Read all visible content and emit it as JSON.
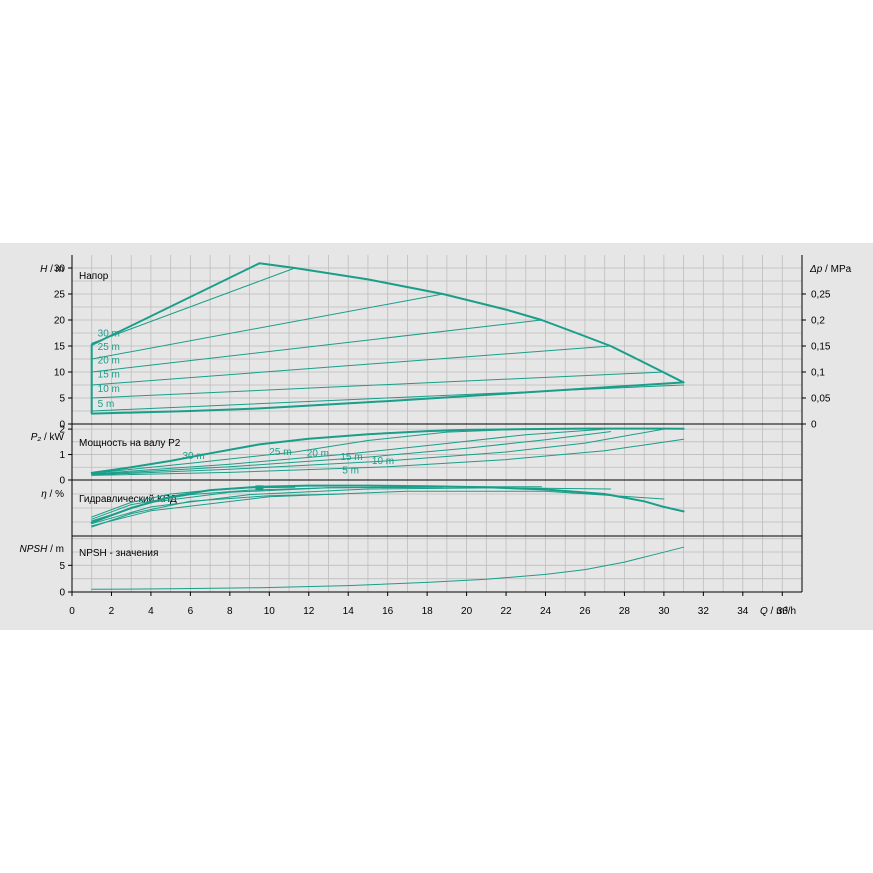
{
  "colors": {
    "curve": "#1a9e8a",
    "grid": "#bdbdbd",
    "panel": "#e6e6e6",
    "plot": "#e6e6e6"
  },
  "chart_data": [
    {
      "id": "head",
      "type": "line",
      "title": "Напор",
      "ylabel_var": "H",
      "ylabel_unit": "m",
      "ylim": [
        0,
        32.5
      ],
      "yticks": [
        "0",
        "5",
        "10",
        "15",
        "20",
        "25",
        "30"
      ],
      "ytick_values": [
        0,
        5,
        10,
        15,
        20,
        25,
        30
      ],
      "y2label_var": "Δp",
      "y2label_unit": "MPa",
      "y2ticks": [
        "0",
        "0,05",
        "0,1",
        "0,15",
        "0,2",
        "0,25"
      ],
      "y2tick_values": [
        0,
        5,
        10,
        15,
        20,
        25
      ],
      "series": [
        {
          "label": "30 m",
          "bold": false,
          "x": [
            1,
            11.3
          ],
          "y": [
            15.5,
            30.0
          ]
        },
        {
          "label": "25 m",
          "bold": false,
          "x": [
            1,
            18.8
          ],
          "y": [
            12.5,
            25.0
          ]
        },
        {
          "label": "20 m",
          "bold": false,
          "x": [
            1,
            23.8
          ],
          "y": [
            10.0,
            20.0
          ]
        },
        {
          "label": "15 m",
          "bold": false,
          "x": [
            1,
            27.3
          ],
          "y": [
            7.5,
            15.0
          ]
        },
        {
          "label": "10 m",
          "bold": false,
          "x": [
            1,
            30.0
          ],
          "y": [
            5.0,
            10.0
          ]
        },
        {
          "label": "5 m",
          "bold": false,
          "x": [
            1,
            31.0
          ],
          "y": [
            2.5,
            7.5
          ]
        },
        {
          "label": "",
          "bold": true,
          "x": [
            1,
            9.5,
            11.3,
            15,
            18.8,
            22,
            23.8,
            25.5,
            27.3,
            29,
            31,
            26,
            21,
            16,
            11,
            9.5,
            6,
            3,
            1,
            1,
            1
          ],
          "y": [
            15.2,
            30.9,
            30.0,
            27.8,
            25.0,
            22.0,
            20.0,
            17.6,
            15.0,
            11.8,
            8.0,
            6.8,
            5.6,
            4.4,
            3.3,
            3.0,
            2.5,
            2.2,
            2.0,
            2.0,
            15.2
          ]
        }
      ],
      "labels": [
        {
          "text": "30 m",
          "x": 1.3,
          "y": 16.8
        },
        {
          "text": "25 m",
          "x": 1.3,
          "y": 14.2
        },
        {
          "text": "20 m",
          "x": 1.3,
          "y": 11.6
        },
        {
          "text": "15 m",
          "x": 1.3,
          "y": 8.9
        },
        {
          "text": "10 m",
          "x": 1.3,
          "y": 6.2
        },
        {
          "text": "5 m",
          "x": 1.3,
          "y": 3.3
        }
      ]
    },
    {
      "id": "power",
      "type": "line",
      "title": "Мощность на валу P2",
      "ylabel_var": "P₂",
      "ylabel_unit": "kW",
      "ylim": [
        0,
        2.2
      ],
      "yticks": [
        "0",
        "1",
        "2"
      ],
      "ytick_values": [
        0,
        1,
        2
      ],
      "series": [
        {
          "label": "30 m",
          "bold": true,
          "x": [
            1,
            3,
            5,
            7,
            9.5,
            12,
            15,
            18,
            20,
            23,
            26,
            28,
            30,
            31
          ],
          "y": [
            0.28,
            0.5,
            0.75,
            1.05,
            1.4,
            1.62,
            1.8,
            1.92,
            1.97,
            2.0,
            2.02,
            2.02,
            2.02,
            2.01
          ]
        },
        {
          "label": "25 m",
          "bold": false,
          "x": [
            1,
            6,
            11.3,
            15,
            19,
            23
          ],
          "y": [
            0.26,
            0.66,
            1.1,
            1.55,
            1.88,
            2.0
          ]
        },
        {
          "label": "20 m",
          "bold": false,
          "x": [
            1,
            8,
            14,
            18.8,
            23,
            27.3
          ],
          "y": [
            0.24,
            0.62,
            1.02,
            1.42,
            1.78,
            2.01
          ]
        },
        {
          "label": "15 m",
          "bold": false,
          "x": [
            1,
            8,
            15,
            20,
            24,
            27.3
          ],
          "y": [
            0.22,
            0.52,
            0.9,
            1.25,
            1.58,
            1.9
          ]
        },
        {
          "label": "10 m",
          "bold": false,
          "x": [
            1,
            8,
            16,
            22,
            26,
            30
          ],
          "y": [
            0.2,
            0.42,
            0.75,
            1.1,
            1.45,
            2.0
          ]
        },
        {
          "label": "5 m",
          "bold": false,
          "x": [
            1,
            8,
            16,
            22,
            27,
            31
          ],
          "y": [
            0.18,
            0.3,
            0.52,
            0.8,
            1.15,
            1.6
          ]
        }
      ],
      "labels": [
        {
          "text": "30 m",
          "x": 5.6,
          "y": 0.82
        },
        {
          "text": "25 m",
          "x": 10.0,
          "y": 0.98
        },
        {
          "text": "20 m",
          "x": 11.9,
          "y": 0.92
        },
        {
          "text": "15 m",
          "x": 13.6,
          "y": 0.78
        },
        {
          "text": "10 m",
          "x": 15.2,
          "y": 0.62
        },
        {
          "text": "5 m",
          "x": 13.7,
          "y": 0.25
        }
      ]
    },
    {
      "id": "efficiency",
      "type": "line",
      "title": "Гидравлический КПД",
      "ylabel_var": "η",
      "ylabel_unit": "%",
      "ylim": [
        0,
        1.0
      ],
      "yticks": [],
      "ytick_values": [],
      "series": [
        {
          "label": "",
          "bold": true,
          "x": [
            1,
            3,
            5,
            7,
            9.5,
            12,
            15,
            18,
            21,
            24,
            27,
            29,
            30,
            31
          ],
          "y": [
            0.24,
            0.5,
            0.7,
            0.82,
            0.88,
            0.9,
            0.9,
            0.89,
            0.87,
            0.83,
            0.75,
            0.62,
            0.52,
            0.44
          ]
        },
        {
          "label": "",
          "bold": false,
          "x": [
            1,
            3,
            5,
            7,
            9,
            11.3
          ],
          "y": [
            0.34,
            0.6,
            0.75,
            0.82,
            0.86,
            0.87
          ]
        },
        {
          "label": "",
          "bold": false,
          "x": [
            1,
            3,
            6,
            9,
            13,
            18.8
          ],
          "y": [
            0.3,
            0.56,
            0.74,
            0.82,
            0.86,
            0.87
          ]
        },
        {
          "label": "",
          "bold": false,
          "x": [
            1,
            4,
            8,
            13,
            19,
            23.8
          ],
          "y": [
            0.27,
            0.6,
            0.78,
            0.86,
            0.88,
            0.88
          ]
        },
        {
          "label": "",
          "bold": false,
          "x": [
            1,
            4,
            9,
            15,
            22,
            27.3
          ],
          "y": [
            0.22,
            0.52,
            0.74,
            0.84,
            0.86,
            0.84
          ]
        },
        {
          "label": "",
          "bold": false,
          "x": [
            1,
            4,
            10,
            17,
            24,
            30
          ],
          "y": [
            0.18,
            0.45,
            0.7,
            0.8,
            0.8,
            0.66
          ]
        },
        {
          "label": "",
          "bold": false,
          "x": [
            1,
            3,
            6,
            10,
            13.8
          ],
          "y": [
            0.16,
            0.4,
            0.62,
            0.72,
            0.75
          ]
        }
      ],
      "marker": {
        "x": 9.5,
        "y": 0.86
      }
    },
    {
      "id": "npsh",
      "type": "line",
      "title": "NPSH - значения",
      "ylabel_var": "NPSH",
      "ylabel_unit": "m",
      "ylim": [
        0,
        10.5
      ],
      "yticks": [
        "0",
        "5"
      ],
      "ytick_values": [
        0,
        5
      ],
      "series": [
        {
          "label": "",
          "bold": false,
          "x": [
            1,
            5,
            9.5,
            14,
            18,
            21,
            24,
            26,
            28,
            29.5,
            31
          ],
          "y": [
            0.5,
            0.6,
            0.8,
            1.2,
            1.8,
            2.4,
            3.3,
            4.2,
            5.6,
            7.0,
            8.4
          ]
        }
      ]
    }
  ],
  "x_axis": {
    "label_var": "Q",
    "label_unit": "m³/h",
    "xlim": [
      0,
      37
    ],
    "ticks": [
      "0",
      "2",
      "4",
      "6",
      "8",
      "10",
      "12",
      "14",
      "16",
      "18",
      "20",
      "22",
      "24",
      "26",
      "28",
      "30",
      "32",
      "34",
      "36"
    ],
    "tick_values": [
      0,
      2,
      4,
      6,
      8,
      10,
      12,
      14,
      16,
      18,
      20,
      22,
      24,
      26,
      28,
      30,
      32,
      34,
      36
    ]
  }
}
